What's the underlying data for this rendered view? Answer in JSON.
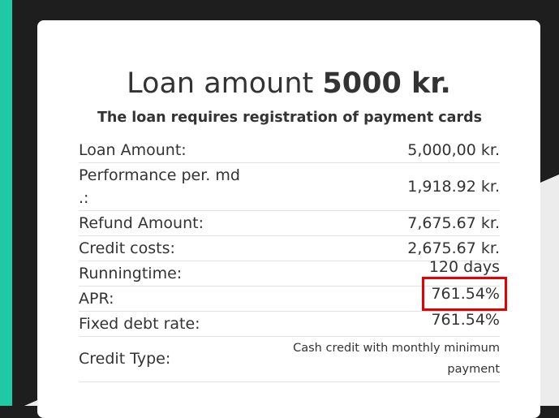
{
  "card": {
    "title": {
      "text": "Loan amount",
      "amount": "5000 kr."
    },
    "subtitle": "The loan requires registration of payment cards",
    "rows": [
      {
        "label": "Loan Amount:",
        "value": "5,000,00 kr."
      },
      {
        "label": "Performance per. md .:",
        "value": "1,918.92 kr."
      },
      {
        "label": "Refund Amount:",
        "value": "7,675.67 kr."
      },
      {
        "label": "Credit costs:",
        "value": "2,675.67 kr."
      },
      {
        "label": "Runningtime:",
        "value": "120 days"
      },
      {
        "label": "APR:",
        "value": "761.54%"
      },
      {
        "label": "Fixed debt rate:",
        "value": "761.54%"
      },
      {
        "label": "Credit Type:",
        "value": "Cash credit with monthly minimum payment"
      }
    ]
  }
}
